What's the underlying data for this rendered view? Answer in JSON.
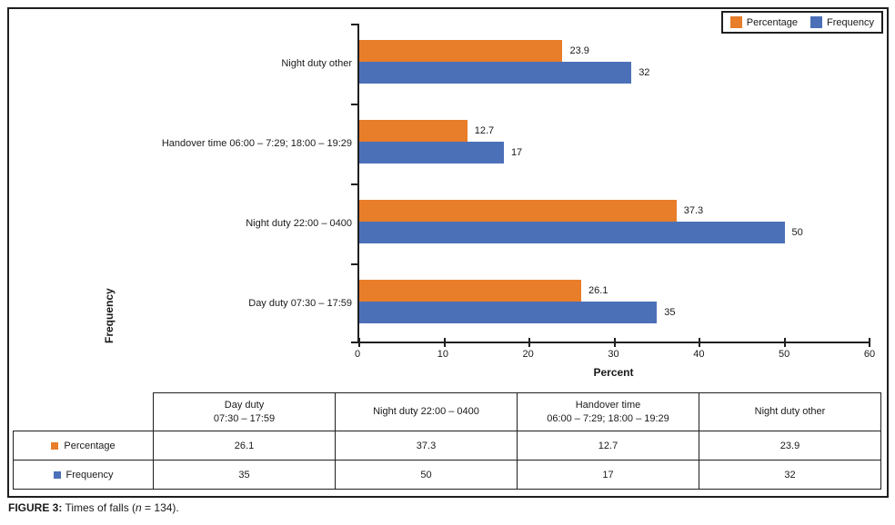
{
  "colors": {
    "percentage": "#E87D2A",
    "frequency": "#4C70B8",
    "axis": "#1f1f1f"
  },
  "legend": {
    "items": [
      {
        "key": "percentage",
        "label": "Percentage"
      },
      {
        "key": "frequency",
        "label": "Frequency"
      }
    ]
  },
  "chart_data": {
    "type": "bar",
    "orientation": "horizontal",
    "xlabel": "Percent",
    "ylabel": "Frequency",
    "xlim": [
      0,
      60
    ],
    "xticks": [
      0,
      10,
      20,
      30,
      40,
      50,
      60
    ],
    "grid": false,
    "legend_position": "top-right",
    "categories": [
      "Night duty other",
      "Handover time 06:00 – 7:29; 18:00 – 19:29",
      "Night duty 22:00 – 0400",
      "Day duty 07:30 – 17:59"
    ],
    "series": [
      {
        "name": "Percentage",
        "color_key": "percentage",
        "values": [
          23.9,
          12.7,
          37.3,
          26.1
        ]
      },
      {
        "name": "Frequency",
        "color_key": "frequency",
        "values": [
          32,
          17,
          50,
          35
        ]
      }
    ]
  },
  "table": {
    "columns": [
      [
        "Day duty",
        "07:30 – 17:59"
      ],
      [
        "Night duty 22:00 – 0400"
      ],
      [
        "Handover time",
        "06:00 – 7:29; 18:00 – 19:29"
      ],
      [
        "Night duty other"
      ]
    ],
    "rows": [
      {
        "label": "Percentage",
        "color_key": "percentage",
        "values": [
          "26.1",
          "37.3",
          "12.7",
          "23.9"
        ]
      },
      {
        "label": "Frequency",
        "color_key": "frequency",
        "values": [
          "35",
          "50",
          "17",
          "32"
        ]
      }
    ]
  },
  "caption": {
    "label": "FIGURE 3:",
    "pre": " Times of falls (",
    "n_symbol": "n",
    "post": " = 134)."
  }
}
